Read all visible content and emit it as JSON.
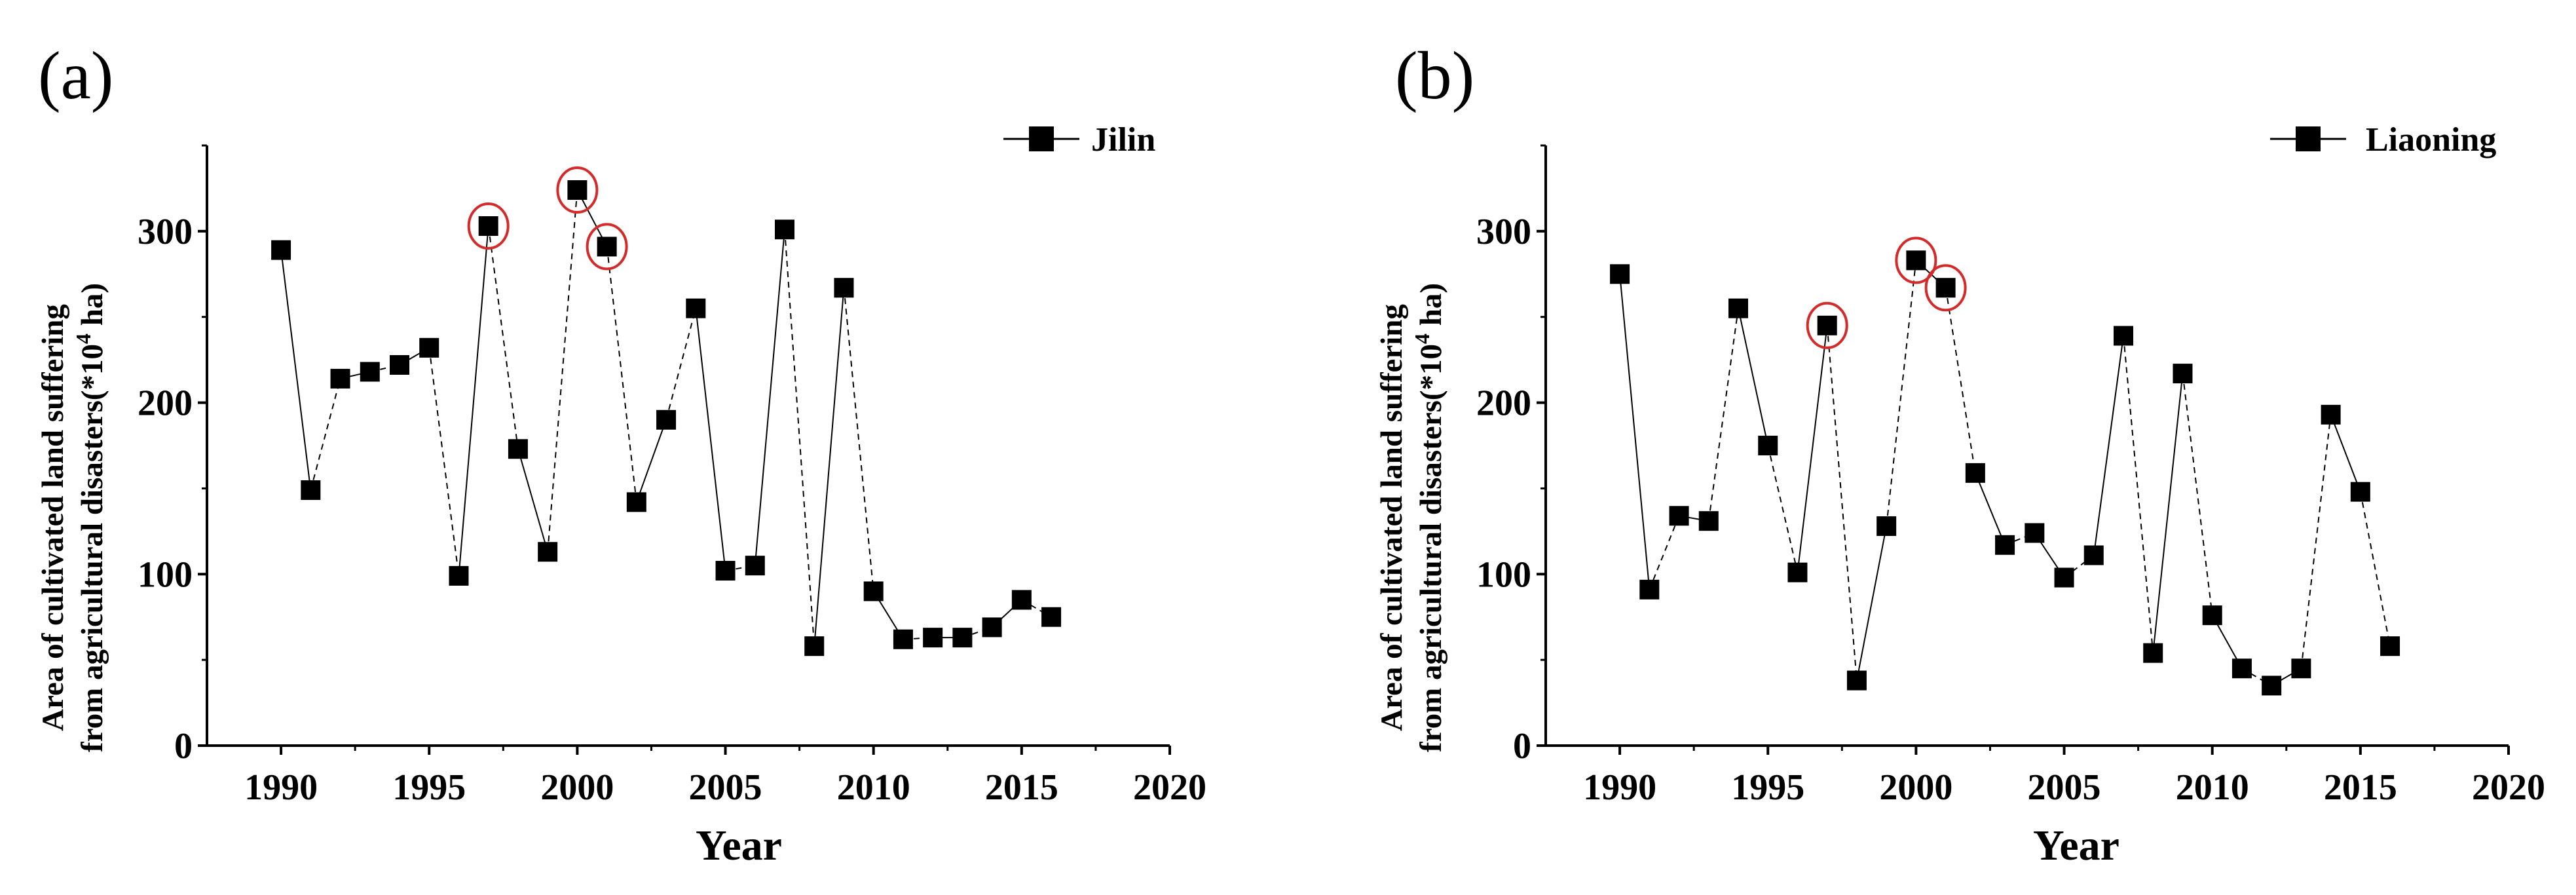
{
  "chart_data": [
    {
      "type": "line",
      "panel_label": "(a)",
      "legend": "Jilin",
      "legend_position": "top-right",
      "xlabel": "Year",
      "ylabel_line1": "Area of cultivated land suffering",
      "ylabel_line2_prefix": "from agricultural disasters(*10",
      "ylabel_superscript": "4",
      "ylabel_line2_suffix": " ha)",
      "xlim": [
        1987.5,
        2020
      ],
      "ylim": [
        0,
        350
      ],
      "xticks": [
        1990,
        1995,
        2000,
        2005,
        2010,
        2015,
        2020
      ],
      "yticks": [
        0,
        100,
        200,
        300
      ],
      "marker": "square",
      "line_style": "solid-and-dashed",
      "highlight_color": "#d42a2a",
      "x": [
        1990,
        1991,
        1992,
        1993,
        1994,
        1995,
        1996,
        1997,
        1998,
        1999,
        2000,
        2001,
        2002,
        2003,
        2004,
        2005,
        2006,
        2007,
        2008,
        2009,
        2010,
        2011,
        2012,
        2013,
        2014,
        2015,
        2016
      ],
      "values": [
        289,
        149,
        214,
        218,
        222,
        232,
        99,
        303,
        173,
        113,
        324,
        291,
        142,
        190,
        255,
        102,
        105,
        301,
        58,
        267,
        90,
        62,
        63,
        63,
        69,
        85,
        75
      ],
      "highlighted_years": [
        1997,
        2000,
        2001
      ]
    },
    {
      "type": "line",
      "panel_label": "(b)",
      "legend": "Liaoning",
      "legend_position": "top-right",
      "xlabel": "Year",
      "ylabel_line1": "Area of cultivated land suffering",
      "ylabel_line2_prefix": "from agricultural disasters(*10",
      "ylabel_superscript": "4",
      "ylabel_line2_suffix": " ha)",
      "xlim": [
        1987.5,
        2020
      ],
      "ylim": [
        0,
        350
      ],
      "xticks": [
        1990,
        1995,
        2000,
        2005,
        2010,
        2015,
        2020
      ],
      "yticks": [
        0,
        100,
        200,
        300
      ],
      "marker": "square",
      "line_style": "solid-and-dashed",
      "highlight_color": "#d42a2a",
      "x": [
        1990,
        1991,
        1992,
        1993,
        1994,
        1995,
        1996,
        1997,
        1998,
        1999,
        2000,
        2001,
        2002,
        2003,
        2004,
        2005,
        2006,
        2007,
        2008,
        2009,
        2010,
        2011,
        2012,
        2013,
        2014,
        2015,
        2016
      ],
      "values": [
        275,
        91,
        134,
        131,
        255,
        175,
        101,
        245,
        38,
        128,
        283,
        267,
        159,
        117,
        124,
        98,
        111,
        239,
        54,
        217,
        76,
        45,
        35,
        45,
        193,
        148,
        58
      ],
      "highlighted_years": [
        1997,
        2000,
        2001
      ]
    }
  ]
}
